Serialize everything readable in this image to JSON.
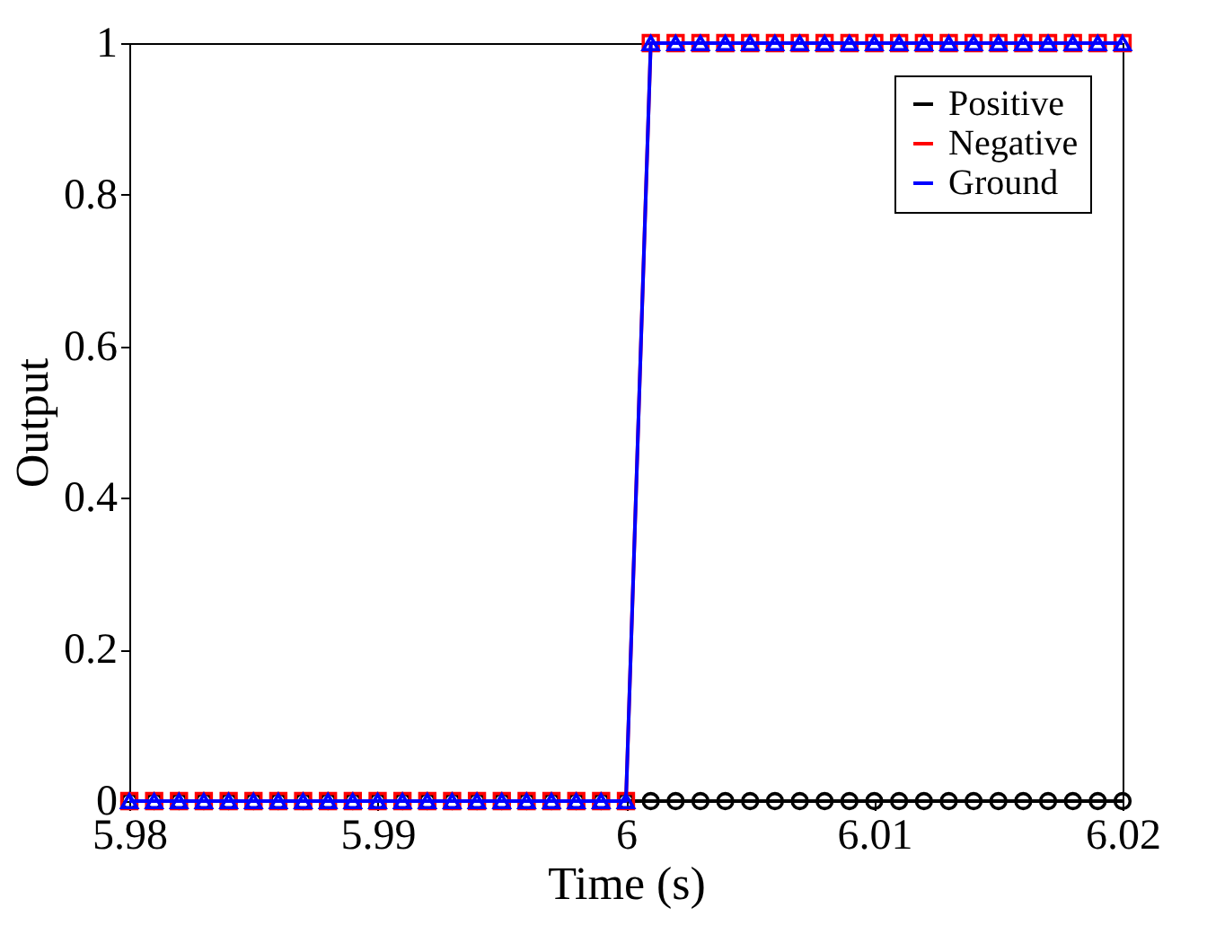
{
  "chart_data": {
    "type": "line",
    "xlabel": "Time (s)",
    "ylabel": "Output",
    "x": [
      5.98,
      5.981,
      5.982,
      5.983,
      5.984,
      5.985,
      5.986,
      5.987,
      5.988,
      5.989,
      5.99,
      5.991,
      5.992,
      5.993,
      5.994,
      5.995,
      5.996,
      5.997,
      5.998,
      5.999,
      6.0,
      6.001,
      6.002,
      6.003,
      6.004,
      6.005,
      6.006,
      6.007,
      6.008,
      6.009,
      6.01,
      6.011,
      6.012,
      6.013,
      6.014,
      6.015,
      6.016,
      6.017,
      6.018,
      6.019,
      6.02
    ],
    "series": [
      {
        "name": "Positive",
        "color": "#000000",
        "marker": "circle",
        "values": [
          0,
          0,
          0,
          0,
          0,
          0,
          0,
          0,
          0,
          0,
          0,
          0,
          0,
          0,
          0,
          0,
          0,
          0,
          0,
          0,
          0,
          0,
          0,
          0,
          0,
          0,
          0,
          0,
          0,
          0,
          0,
          0,
          0,
          0,
          0,
          0,
          0,
          0,
          0,
          0,
          0
        ]
      },
      {
        "name": "Negative",
        "color": "#ff0000",
        "marker": "square",
        "values": [
          0,
          0,
          0,
          0,
          0,
          0,
          0,
          0,
          0,
          0,
          0,
          0,
          0,
          0,
          0,
          0,
          0,
          0,
          0,
          0,
          0,
          1,
          1,
          1,
          1,
          1,
          1,
          1,
          1,
          1,
          1,
          1,
          1,
          1,
          1,
          1,
          1,
          1,
          1,
          1,
          1
        ]
      },
      {
        "name": "Ground",
        "color": "#0000ff",
        "marker": "triangle",
        "values": [
          0,
          0,
          0,
          0,
          0,
          0,
          0,
          0,
          0,
          0,
          0,
          0,
          0,
          0,
          0,
          0,
          0,
          0,
          0,
          0,
          0,
          1,
          1,
          1,
          1,
          1,
          1,
          1,
          1,
          1,
          1,
          1,
          1,
          1,
          1,
          1,
          1,
          1,
          1,
          1,
          1
        ]
      }
    ],
    "xlim": [
      5.98,
      6.02
    ],
    "xticks": [
      5.98,
      5.99,
      6,
      6.01,
      6.02
    ],
    "ylim": [
      0,
      1
    ],
    "yticks": [
      0,
      0.2,
      0.4,
      0.6,
      0.8,
      1
    ],
    "grid": false,
    "legend": "top right",
    "line_style": "solid"
  }
}
